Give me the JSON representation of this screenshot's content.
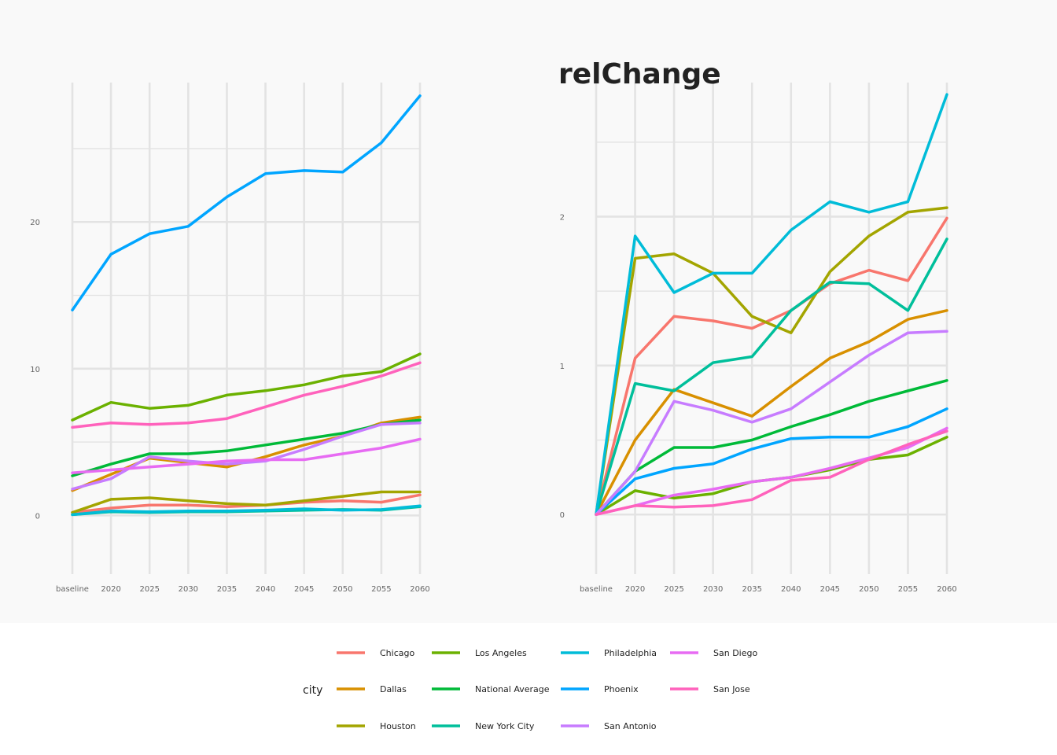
{
  "chart_data": [
    {
      "type": "line",
      "title": "",
      "xlabel": "",
      "ylabel": "",
      "categories": [
        "baseline",
        "2020",
        "2025",
        "2030",
        "2035",
        "2040",
        "2045",
        "2050",
        "2055",
        "2060"
      ],
      "yticks": [
        0,
        10,
        20
      ],
      "ylim": [
        -4,
        29.5
      ],
      "grid": true,
      "series": [
        {
          "name": "Chicago",
          "values": [
            0.2,
            0.5,
            0.7,
            0.7,
            0.6,
            0.7,
            0.9,
            1.0,
            0.9,
            1.4
          ]
        },
        {
          "name": "Dallas",
          "values": [
            1.7,
            2.8,
            3.9,
            3.6,
            3.3,
            4.0,
            4.8,
            5.4,
            6.3,
            6.7
          ]
        },
        {
          "name": "Houston",
          "values": [
            0.2,
            1.1,
            1.2,
            1.0,
            0.8,
            0.7,
            1.0,
            1.3,
            1.6,
            1.6
          ]
        },
        {
          "name": "Los Angeles",
          "values": [
            6.5,
            7.7,
            7.3,
            7.5,
            8.2,
            8.5,
            8.9,
            9.5,
            9.8,
            11.0
          ]
        },
        {
          "name": "National Average",
          "values": [
            2.7,
            3.5,
            4.2,
            4.2,
            4.4,
            4.8,
            5.2,
            5.6,
            6.2,
            6.5
          ]
        },
        {
          "name": "New York City",
          "values": [
            0.05,
            0.25,
            0.2,
            0.25,
            0.25,
            0.3,
            0.35,
            0.4,
            0.35,
            0.6
          ]
        },
        {
          "name": "Philadelphia",
          "values": [
            0.05,
            0.3,
            0.25,
            0.3,
            0.3,
            0.35,
            0.45,
            0.35,
            0.4,
            0.65
          ]
        },
        {
          "name": "Phoenix",
          "values": [
            14.0,
            17.8,
            19.2,
            19.7,
            21.7,
            23.3,
            23.5,
            23.4,
            25.4,
            28.6
          ]
        },
        {
          "name": "San Antonio",
          "values": [
            1.8,
            2.5,
            4.0,
            3.7,
            3.5,
            3.7,
            4.5,
            5.4,
            6.2,
            6.3
          ]
        },
        {
          "name": "San Diego",
          "values": [
            2.9,
            3.1,
            3.3,
            3.5,
            3.7,
            3.8,
            3.8,
            4.2,
            4.6,
            5.2
          ]
        },
        {
          "name": "San Jose",
          "values": [
            6.0,
            6.3,
            6.2,
            6.3,
            6.6,
            7.4,
            8.2,
            8.8,
            9.5,
            10.4
          ]
        }
      ]
    },
    {
      "type": "line",
      "title": "relChange",
      "xlabel": "",
      "ylabel": "",
      "categories": [
        "baseline",
        "2020",
        "2025",
        "2030",
        "2035",
        "2040",
        "2045",
        "2050",
        "2055",
        "2060"
      ],
      "yticks": [
        0,
        1,
        2
      ],
      "ylim": [
        -0.4,
        2.9
      ],
      "grid": true,
      "series": [
        {
          "name": "Chicago",
          "values": [
            0.0,
            1.05,
            1.33,
            1.3,
            1.25,
            1.37,
            1.55,
            1.64,
            1.57,
            1.99
          ]
        },
        {
          "name": "Dallas",
          "values": [
            0.0,
            0.5,
            0.84,
            0.75,
            0.66,
            0.86,
            1.05,
            1.16,
            1.31,
            1.37
          ]
        },
        {
          "name": "Houston",
          "values": [
            0.0,
            1.72,
            1.75,
            1.62,
            1.33,
            1.22,
            1.63,
            1.87,
            2.03,
            2.06
          ]
        },
        {
          "name": "Los Angeles",
          "values": [
            0.0,
            0.16,
            0.11,
            0.14,
            0.22,
            0.25,
            0.3,
            0.37,
            0.4,
            0.52
          ]
        },
        {
          "name": "National Average",
          "values": [
            0.0,
            0.29,
            0.45,
            0.45,
            0.5,
            0.59,
            0.67,
            0.76,
            0.83,
            0.9
          ]
        },
        {
          "name": "New York City",
          "values": [
            0.0,
            0.88,
            0.83,
            1.02,
            1.06,
            1.37,
            1.56,
            1.55,
            1.37,
            1.85
          ]
        },
        {
          "name": "Philadelphia",
          "values": [
            0.0,
            1.87,
            1.49,
            1.62,
            1.62,
            1.91,
            2.1,
            2.03,
            2.1,
            2.82
          ]
        },
        {
          "name": "Phoenix",
          "values": [
            0.0,
            0.24,
            0.31,
            0.34,
            0.44,
            0.51,
            0.52,
            0.52,
            0.59,
            0.71
          ]
        },
        {
          "name": "San Antonio",
          "values": [
            0.0,
            0.29,
            0.76,
            0.7,
            0.62,
            0.71,
            0.89,
            1.07,
            1.22,
            1.23
          ]
        },
        {
          "name": "San Diego",
          "values": [
            0.0,
            0.06,
            0.13,
            0.17,
            0.22,
            0.25,
            0.31,
            0.38,
            0.45,
            0.58
          ]
        },
        {
          "name": "San Jose",
          "values": [
            0.0,
            0.06,
            0.05,
            0.06,
            0.1,
            0.23,
            0.25,
            0.37,
            0.47,
            0.56
          ]
        }
      ]
    }
  ],
  "legend": {
    "title": "city",
    "placement": "bottom",
    "entries": [
      {
        "name": "Chicago",
        "color": "#F8766D"
      },
      {
        "name": "Dallas",
        "color": "#D89000"
      },
      {
        "name": "Houston",
        "color": "#A3A500"
      },
      {
        "name": "Los Angeles",
        "color": "#6BB100"
      },
      {
        "name": "National Average",
        "color": "#00BA38"
      },
      {
        "name": "New York City",
        "color": "#00BF9B"
      },
      {
        "name": "Philadelphia",
        "color": "#00BCD8"
      },
      {
        "name": "Phoenix",
        "color": "#00A5FF"
      },
      {
        "name": "San Antonio",
        "color": "#C77CFF"
      },
      {
        "name": "San Diego",
        "color": "#E76BF3"
      },
      {
        "name": "San Jose",
        "color": "#FF62BC"
      }
    ]
  },
  "colors": {
    "panel_background": "#F9F9F9",
    "grid": "#E3E3E3"
  }
}
